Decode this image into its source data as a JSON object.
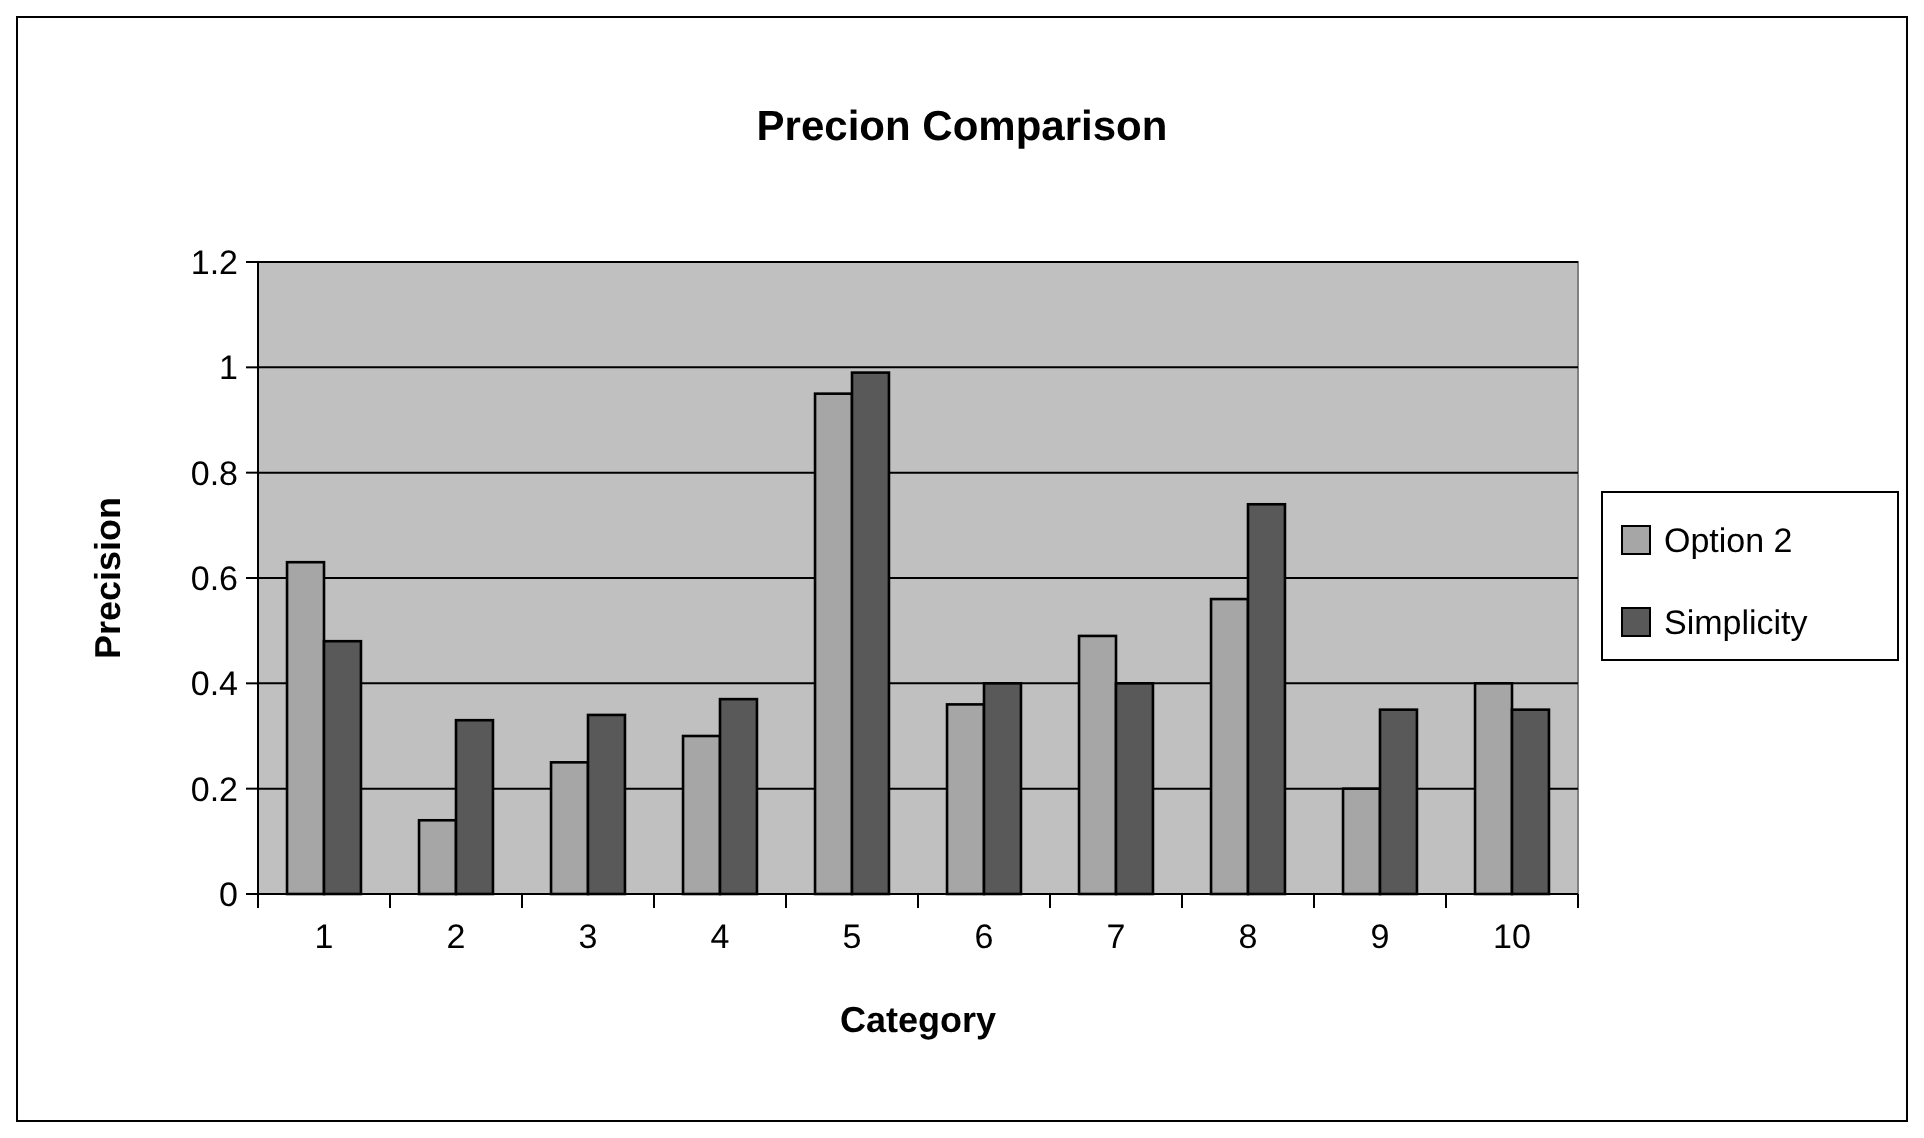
{
  "chart_data": {
    "type": "bar",
    "title": "Precion Comparison",
    "xlabel": "Category",
    "ylabel": "Precision",
    "categories": [
      "1",
      "2",
      "3",
      "4",
      "5",
      "6",
      "7",
      "8",
      "9",
      "10"
    ],
    "series": [
      {
        "name": "Option 2",
        "color": "#a6a6a6",
        "values": [
          0.63,
          0.14,
          0.25,
          0.3,
          0.95,
          0.36,
          0.49,
          0.56,
          0.2,
          0.4
        ]
      },
      {
        "name": "Simplicity",
        "color": "#595959",
        "values": [
          0.48,
          0.33,
          0.34,
          0.37,
          0.99,
          0.4,
          0.4,
          0.74,
          0.35,
          0.35
        ]
      }
    ],
    "ylim": [
      0,
      1.2
    ],
    "yticks": [
      0,
      0.2,
      0.4,
      0.6,
      0.8,
      1,
      1.2
    ],
    "grid": "y",
    "legend": "right"
  }
}
